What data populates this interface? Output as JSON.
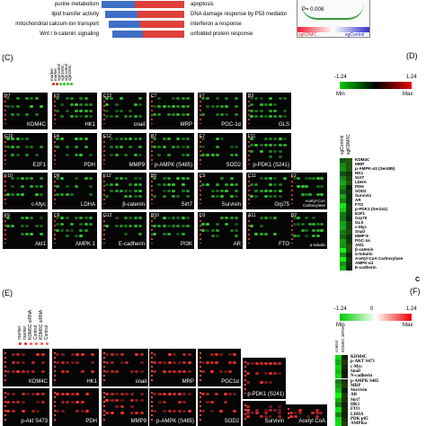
{
  "enrichment": {
    "left_terms": [
      "purine metabolism",
      "lipid transfer activity",
      "mitochondrial calcium ion transport",
      "Wnt / b-catenin signaling"
    ],
    "right_terms": [
      "apoptosis",
      "DNA damage response by P53 mediator",
      "interferon a response",
      "unfolded protein response"
    ],
    "gsea": {
      "p_value": "P= 0.008",
      "left_label": "sgKDMC",
      "right_label": "sgControl"
    }
  },
  "panel_c": {
    "label": "(C)",
    "lane_labels": [
      "marker",
      "marker",
      "sgControl",
      "sgKDMC",
      "sgControl",
      "sgKDMC"
    ],
    "rows": [
      [
        {
          "id": "H7",
          "name": "KDM4C"
        },
        {
          "id": "F3",
          "name": "HK1"
        },
        {
          "id": "C12",
          "name": "snail"
        },
        {
          "id": "C7",
          "name": "MRP"
        },
        {
          "id": "F7",
          "name": "PGC-1α"
        },
        {
          "id": "B3",
          "name": "GLS"
        }
      ],
      [
        {
          "id": "G10",
          "name": "E2F1"
        },
        {
          "id": "F4",
          "name": "PDH"
        },
        {
          "id": "E12",
          "name": "MMP9"
        },
        {
          "id": "B7",
          "name": "p-AMPK (S485)"
        },
        {
          "id": "E7",
          "name": "SOD2"
        },
        {
          "id": "F11",
          "name": "p-PDK1 (S241)"
        }
      ],
      [
        {
          "id": "F10",
          "name": "c-Myc"
        },
        {
          "id": "D6",
          "name": "LDHA"
        },
        {
          "id": "F12",
          "name": "β-catenin"
        },
        {
          "id": "B5",
          "name": "Sirt7"
        },
        {
          "id": "C5",
          "name": "Survivin"
        },
        {
          "id": "C11",
          "name": "Grp75"
        },
        {
          "id": "F2",
          "name": "Acetyl-CoA Carboxylase"
        }
      ],
      [
        {
          "id": "F9",
          "name": "Akt1"
        },
        {
          "id": "C6",
          "name": "AMPK 1"
        },
        {
          "id": "G12",
          "name": "E-cadherin"
        },
        {
          "id": "B10",
          "name": "PI3K"
        },
        {
          "id": "D3",
          "name": "AR"
        },
        {
          "id": "A11",
          "name": "FTO"
        },
        {
          "id": "B2",
          "name": "α-tubulin"
        }
      ]
    ]
  },
  "panel_d": {
    "label": "(D)",
    "scale_min": "-1.24",
    "scale_max": "1.24",
    "min_label": "Min",
    "max_label": "Max",
    "columns": [
      "sgControl",
      "sgKDM6C"
    ],
    "proteins": [
      "KDM4C",
      "MRP",
      "p-AMPK-α1 (Ser485)",
      "HK1",
      "Sirt7",
      "LDHA",
      "PDH",
      "SOD2",
      "Survivin",
      "AR",
      "FTO",
      "p-PDK1 (Ser241)",
      "E2F1",
      "Grp75",
      "GLS",
      "c-Myc",
      "Snail",
      "MMP-9",
      "PGC-1α",
      "Akt1",
      "β-catenin",
      "α-tubulin",
      "Acetyl-CoA Carboxylase",
      "AMPK-α1",
      "E-cadherin"
    ],
    "corner": "C"
  },
  "panel_e": {
    "label": "(E)",
    "lane_labels": [
      "marker",
      "marker",
      "KDM6C siRNA",
      "Control",
      "KDM6C siRNA",
      "Control"
    ],
    "blots": [
      "KDM4C",
      "HK1",
      "snail",
      "MRP",
      "PGC1α",
      "p-Akt S473",
      "PDH",
      "MMP9",
      "p-AMPK (S485)",
      "SOD2",
      "p-PDK1 (S241)",
      "Survivin",
      "Acetyl CoA"
    ]
  },
  "panel_f": {
    "label": "(F)",
    "scale_min": "-1.24",
    "scale_mid": "0",
    "scale_max": "1.24",
    "min_label": "Min",
    "max_label": "Max",
    "columns": [
      "control",
      "KDM6C siRNA"
    ],
    "proteins": [
      "KDM4C",
      "p-AKT S473",
      "c-Myc",
      "Snail",
      "N-cadherin",
      "p-AMPK S485",
      "MRP",
      "Survivin",
      "AR",
      "Sirt7",
      "HK1",
      "FTO",
      "LDHA",
      "PDK p85",
      "AMPKα"
    ]
  }
}
